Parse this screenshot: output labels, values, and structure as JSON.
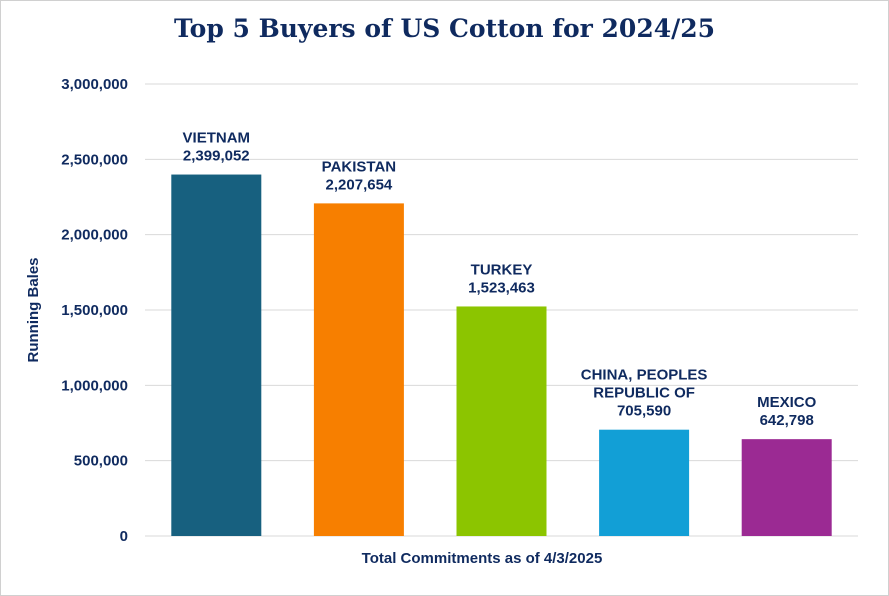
{
  "chart_data": {
    "type": "bar",
    "title": "Top 5 Buyers of US Cotton for 2024/25",
    "xlabel": "Total Commitments as of 4/3/2025",
    "ylabel": "Running Bales",
    "ylim": [
      0,
      3000000
    ],
    "yticks": [
      "0",
      "500,000",
      "1,000,000",
      "1,500,000",
      "2,000,000",
      "2,500,000",
      "3,000,000"
    ],
    "ytick_values": [
      0,
      500000,
      1000000,
      1500000,
      2000000,
      2500000,
      3000000
    ],
    "grid": true,
    "categories": [
      "VIETNAM",
      "PAKISTAN",
      "TURKEY",
      "CHINA, PEOPLES REPUBLIC OF",
      "MEXICO"
    ],
    "label_lines": [
      [
        "VIETNAM"
      ],
      [
        "PAKISTAN"
      ],
      [
        "TURKEY"
      ],
      [
        "CHINA, PEOPLES",
        "REPUBLIC OF"
      ],
      [
        "MEXICO"
      ]
    ],
    "values": [
      2399052,
      2207654,
      1523463,
      705590,
      642798
    ],
    "value_labels": [
      "2,399,052",
      "2,207,654",
      "1,523,463",
      "705,590",
      "642,798"
    ],
    "colors": [
      "#17607f",
      "#f77f00",
      "#8cc500",
      "#129fd6",
      "#9b2a93"
    ]
  }
}
